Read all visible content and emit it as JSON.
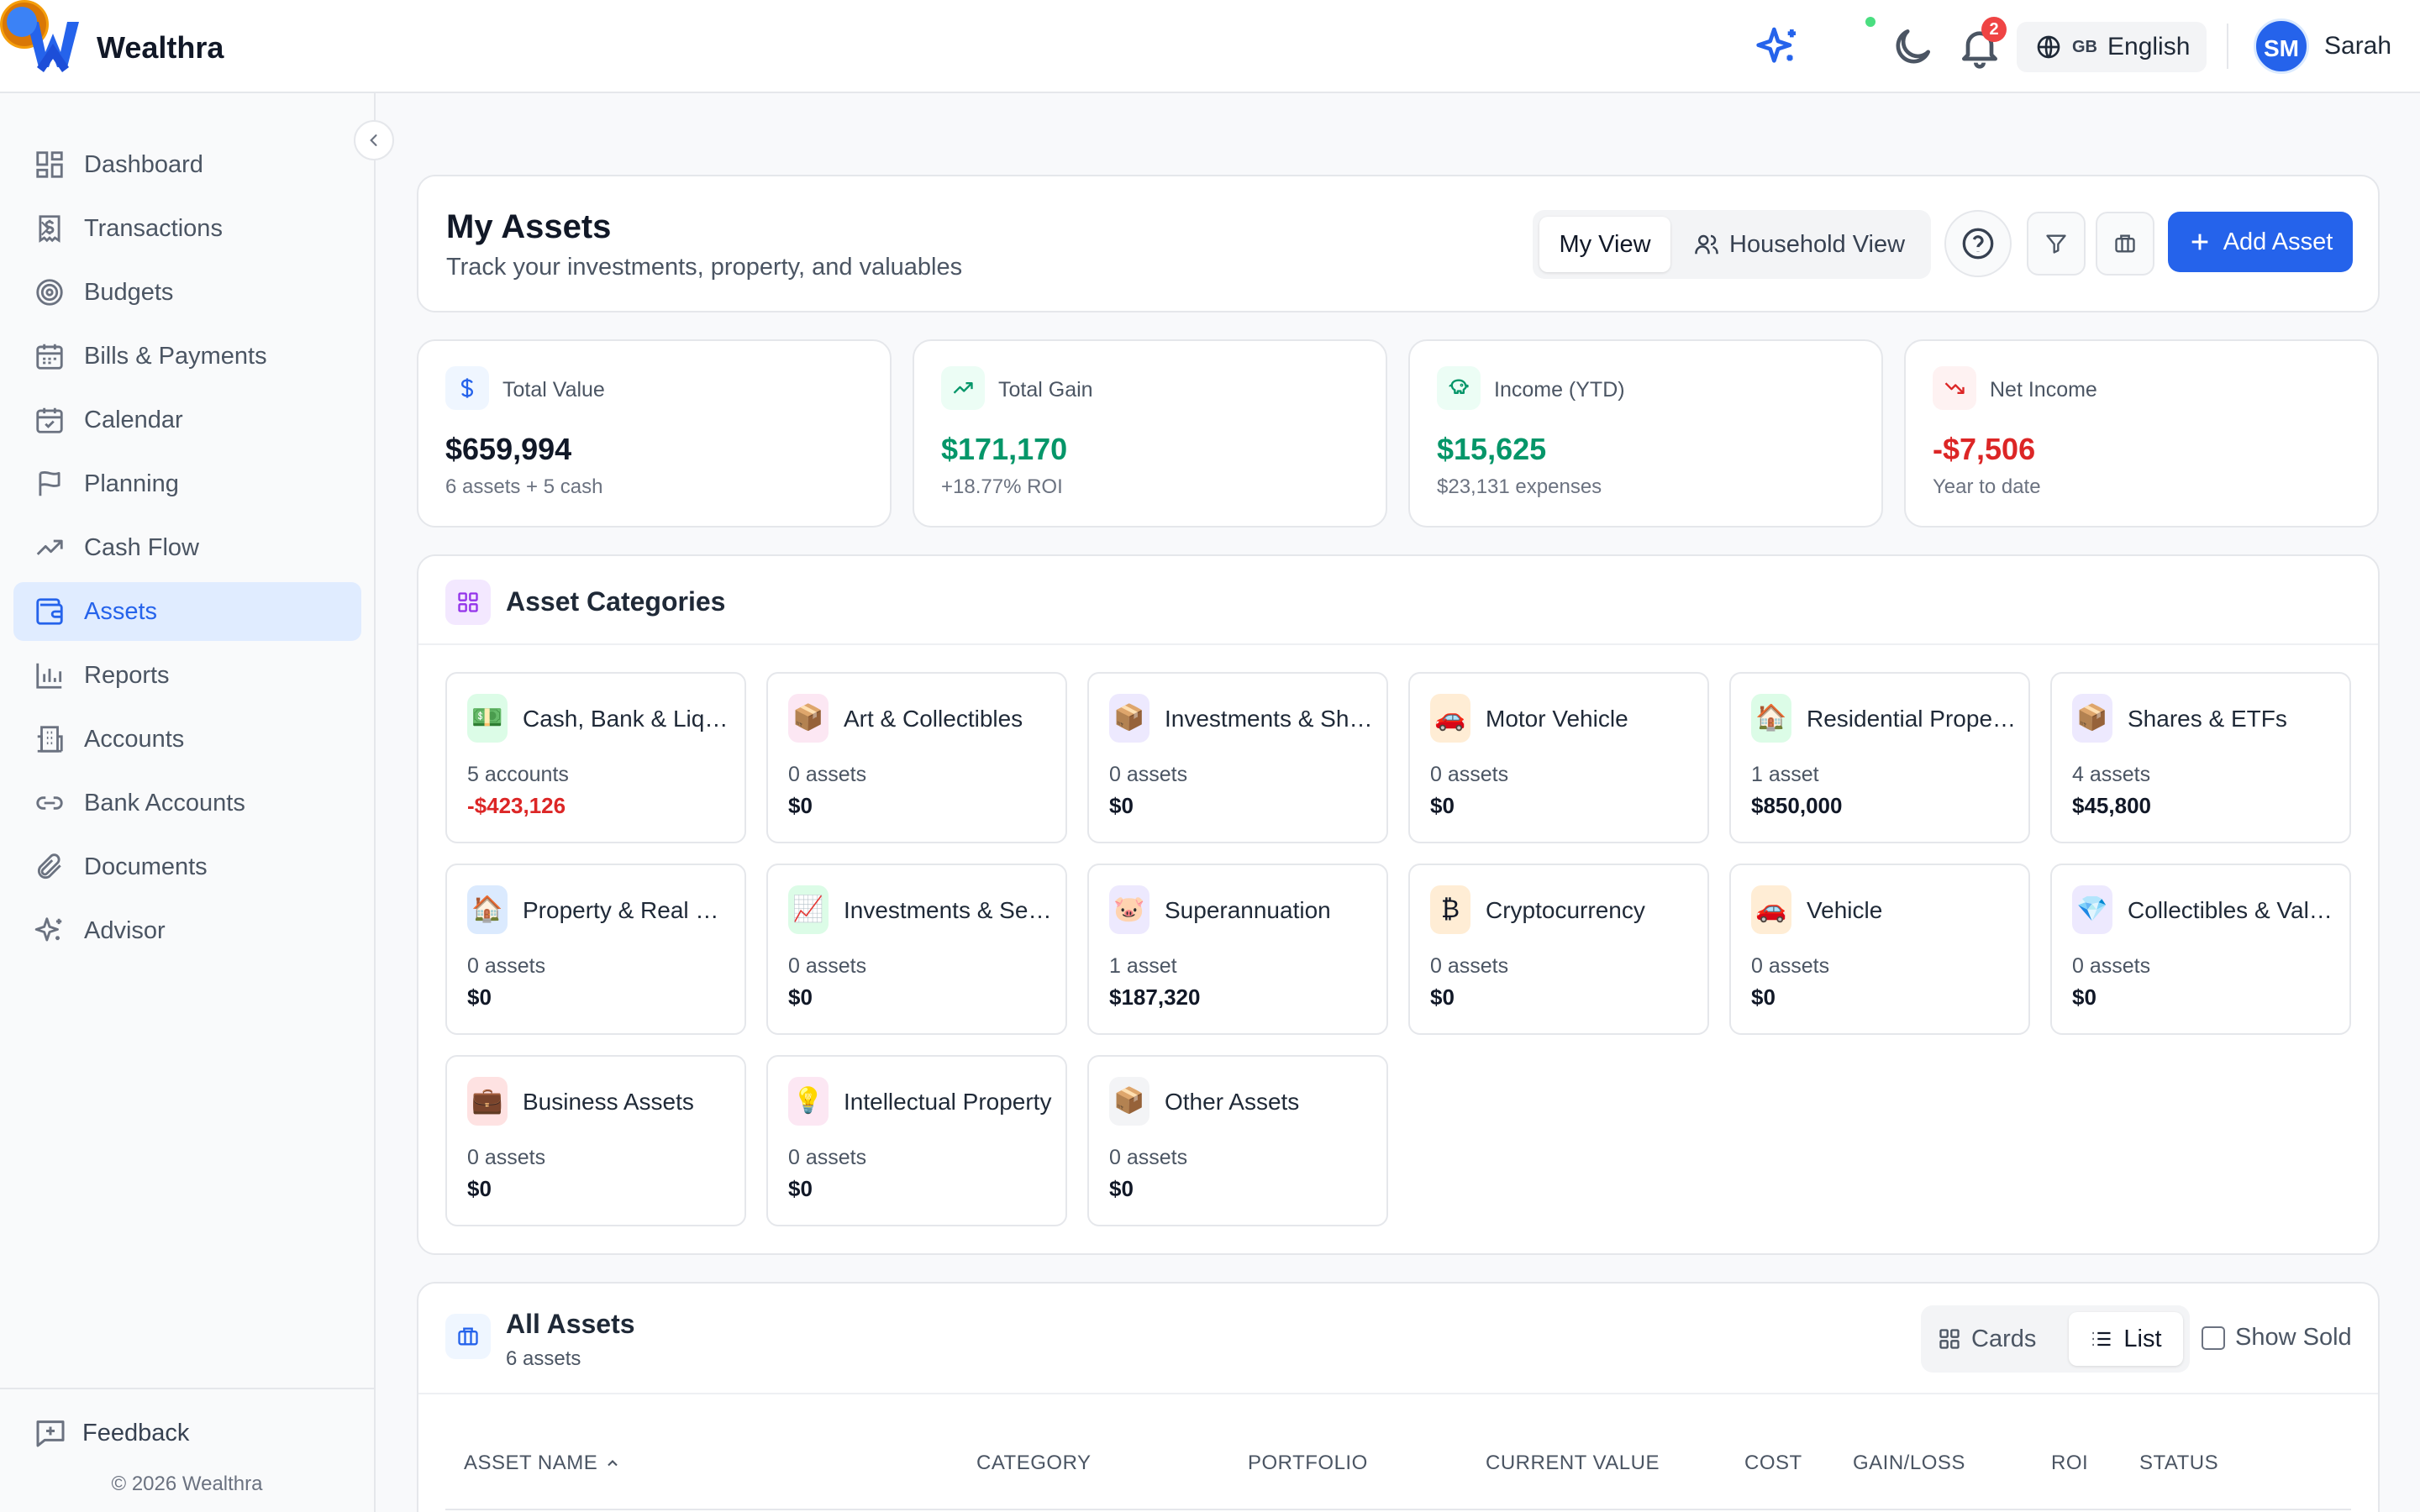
{
  "header": {
    "app_name": "Wealthra",
    "notification_count": "2",
    "language_flag": "GB",
    "language": "English",
    "user_initials": "SM",
    "user_name": "Sarah"
  },
  "sidebar": {
    "items": [
      {
        "label": "Dashboard",
        "icon": "dashboard-grid-icon"
      },
      {
        "label": "Transactions",
        "icon": "dollar-receipt-icon",
        "has_submenu": true
      },
      {
        "label": "Budgets",
        "icon": "target-icon"
      },
      {
        "label": "Bills & Payments",
        "icon": "calendar-icon"
      },
      {
        "label": "Calendar",
        "icon": "calendar-check-icon"
      },
      {
        "label": "Planning",
        "icon": "flag-icon"
      },
      {
        "label": "Cash Flow",
        "icon": "trending-up-icon"
      },
      {
        "label": "Assets",
        "icon": "wallet-icon",
        "active": true
      },
      {
        "label": "Reports",
        "icon": "bar-chart-icon"
      },
      {
        "label": "Accounts",
        "icon": "building-icon"
      },
      {
        "label": "Bank Accounts",
        "icon": "link-icon"
      },
      {
        "label": "Documents",
        "icon": "paperclip-icon"
      },
      {
        "label": "Advisor",
        "icon": "sparkle-icon"
      }
    ],
    "feedback_label": "Feedback",
    "copyright": "© 2026 Wealthra"
  },
  "page": {
    "title": "My Assets",
    "subtitle": "Track your investments, property, and valuables",
    "my_view": "My View",
    "household_view": "Household View",
    "add_asset": "Add Asset"
  },
  "stats": [
    {
      "label": "Total Value",
      "value": "$659,994",
      "sub": "6 assets + 5 cash",
      "color": "#111827",
      "icon": "dollar-icon",
      "icon_bg": "#eff6ff",
      "icon_color": "#2563eb"
    },
    {
      "label": "Total Gain",
      "value": "$171,170",
      "sub": "+18.77% ROI",
      "color": "#059669",
      "icon": "trending-up-icon",
      "icon_bg": "#ecfdf5",
      "icon_color": "#059669"
    },
    {
      "label": "Income (YTD)",
      "value": "$15,625",
      "sub": "$23,131 expenses",
      "color": "#059669",
      "icon": "piggy-bank-icon",
      "icon_bg": "#ecfdf5",
      "icon_color": "#059669"
    },
    {
      "label": "Net Income",
      "value": "-$7,506",
      "sub": "Year to date",
      "color": "#dc2626",
      "icon": "trending-down-icon",
      "icon_bg": "#fef2f2",
      "icon_color": "#dc2626"
    }
  ],
  "categories": {
    "title": "Asset Categories",
    "items": [
      {
        "name": "Cash, Bank & Liquid",
        "count": "5 accounts",
        "value": "-$423,126",
        "negative": true,
        "emoji": "💵",
        "bg": "#dcfce7"
      },
      {
        "name": "Art & Collectibles",
        "count": "0 assets",
        "value": "$0",
        "emoji": "📦",
        "bg": "#fce7f3"
      },
      {
        "name": "Investments & Shares",
        "count": "0 assets",
        "value": "$0",
        "emoji": "📦",
        "bg": "#ede9fe"
      },
      {
        "name": "Motor Vehicle",
        "count": "0 assets",
        "value": "$0",
        "emoji": "🚗",
        "bg": "#ffedd5"
      },
      {
        "name": "Residential Property",
        "count": "1 asset",
        "value": "$850,000",
        "emoji": "🏠",
        "bg": "#dcfce7"
      },
      {
        "name": "Shares & ETFs",
        "count": "4 assets",
        "value": "$45,800",
        "emoji": "📦",
        "bg": "#ede9fe"
      },
      {
        "name": "Property & Real Estate",
        "count": "0 assets",
        "value": "$0",
        "emoji": "🏠",
        "bg": "#dbeafe"
      },
      {
        "name": "Investments & Securities",
        "count": "0 assets",
        "value": "$0",
        "emoji": "📈",
        "bg": "#dcfce7"
      },
      {
        "name": "Superannuation",
        "count": "1 asset",
        "value": "$187,320",
        "emoji": "🐷",
        "bg": "#ede9fe"
      },
      {
        "name": "Cryptocurrency",
        "count": "0 assets",
        "value": "$0",
        "emoji": "₿",
        "bg": "#ffedd5"
      },
      {
        "name": "Vehicle",
        "count": "0 assets",
        "value": "$0",
        "emoji": "🚗",
        "bg": "#ffedd5"
      },
      {
        "name": "Collectibles & Valuables",
        "count": "0 assets",
        "value": "$0",
        "emoji": "💎",
        "bg": "#ede9fe"
      },
      {
        "name": "Business Assets",
        "count": "0 assets",
        "value": "$0",
        "emoji": "💼",
        "bg": "#fee2e2"
      },
      {
        "name": "Intellectual Property",
        "count": "0 assets",
        "value": "$0",
        "emoji": "💡",
        "bg": "#fce7f3"
      },
      {
        "name": "Other Assets",
        "count": "0 assets",
        "value": "$0",
        "emoji": "📦",
        "bg": "#f3f4f6"
      }
    ]
  },
  "all_assets": {
    "title": "All Assets",
    "count": "6 assets",
    "cards_label": "Cards",
    "list_label": "List",
    "show_sold": "Show Sold",
    "columns": [
      "ASSET NAME",
      "CATEGORY",
      "PORTFOLIO",
      "CURRENT VALUE",
      "COST",
      "GAIN/LOSS",
      "ROI",
      "STATUS"
    ]
  }
}
